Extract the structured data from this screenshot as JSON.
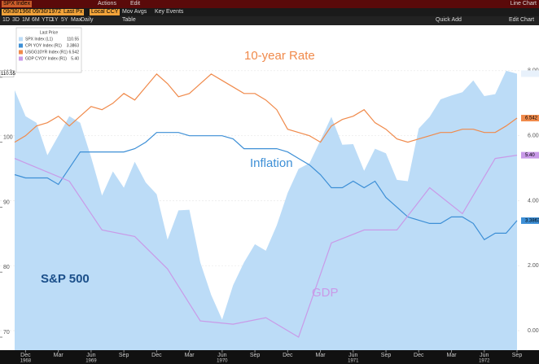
{
  "toolbar": {
    "security": "SPX Index",
    "menus": [
      "Actions",
      "Edit"
    ],
    "view": "Line Chart",
    "fields": [
      "09/30/1968",
      "09/30/1972",
      "Last Px",
      "Local CCY",
      "Mov Avgs",
      "Key Events"
    ],
    "periods": [
      "1D",
      "3D",
      "1M",
      "6M",
      "YTD",
      "1Y",
      "5Y",
      "Max",
      "Daily",
      "Table"
    ],
    "right_actions": [
      "Quick Add",
      "Edit Chart"
    ]
  },
  "chart_data": {
    "type": "line",
    "legend_title": "Last Price",
    "annotations": {
      "rate": "10-year Rate",
      "inflation": "Inflation",
      "gdp": "GDP",
      "spx": "S&P 500"
    },
    "x": [
      "1968-11",
      "1968-12",
      "1969-01",
      "1969-02",
      "1969-03",
      "1969-04",
      "1969-05",
      "1969-06",
      "1969-07",
      "1969-08",
      "1969-09",
      "1969-10",
      "1969-11",
      "1969-12",
      "1970-01",
      "1970-02",
      "1970-03",
      "1970-04",
      "1970-05",
      "1970-06",
      "1970-07",
      "1970-08",
      "1970-09",
      "1970-10",
      "1970-11",
      "1970-12",
      "1971-01",
      "1971-02",
      "1971-03",
      "1971-04",
      "1971-05",
      "1971-06",
      "1971-07",
      "1971-08",
      "1971-09",
      "1971-10",
      "1971-11",
      "1971-12",
      "1972-01",
      "1972-02",
      "1972-03",
      "1972-04",
      "1972-05",
      "1972-06",
      "1972-07",
      "1972-08",
      "1972-09"
    ],
    "xticks": [
      {
        "value": "1968-12",
        "label": "Dec"
      },
      {
        "value": "1969-03",
        "label": "Mar"
      },
      {
        "value": "1969-06",
        "label": "Jun"
      },
      {
        "value": "1969-09",
        "label": "Sep"
      },
      {
        "value": "1969-12",
        "label": "Dec"
      },
      {
        "value": "1970-03",
        "label": "Mar"
      },
      {
        "value": "1970-06",
        "label": "Jun"
      },
      {
        "value": "1970-09",
        "label": "Sep"
      },
      {
        "value": "1970-12",
        "label": "Dec"
      },
      {
        "value": "1971-03",
        "label": "Mar"
      },
      {
        "value": "1971-06",
        "label": "Jun"
      },
      {
        "value": "1971-09",
        "label": "Sep"
      },
      {
        "value": "1971-12",
        "label": "Dec"
      },
      {
        "value": "1972-03",
        "label": "Mar"
      },
      {
        "value": "1972-06",
        "label": "Jun"
      },
      {
        "value": "1972-09",
        "label": "Sep"
      }
    ],
    "xyears": [
      {
        "value": "1968-12",
        "label": "1968"
      },
      {
        "value": "1969-06",
        "label": "1969"
      },
      {
        "value": "1970-06",
        "label": "1970"
      },
      {
        "value": "1971-06",
        "label": "1971"
      },
      {
        "value": "1972-06",
        "label": "1972"
      }
    ],
    "ylim": [
      68,
      118
    ],
    "yticks": [
      70,
      80,
      90,
      100,
      110
    ],
    "y2lim": [
      -0.6,
      9.4
    ],
    "y2ticks": [
      {
        "value": 0,
        "label": "0.00"
      },
      {
        "value": 2,
        "label": "2.00"
      },
      {
        "value": 4,
        "label": "4.00"
      },
      {
        "value": 6,
        "label": "6.00"
      },
      {
        "value": 8,
        "label": "8.00"
      }
    ],
    "series": [
      {
        "name": "SPX Index (L1)",
        "color": "#bcdcf7",
        "style": "area",
        "last_label": "110.55",
        "values": [
          108,
          104,
          103,
          98,
          101,
          104,
          103,
          97.7,
          91.8,
          95.5,
          93,
          97,
          93.8,
          92,
          85,
          89.5,
          89.6,
          81.5,
          76.5,
          72.7,
          78,
          81.5,
          84.3,
          83.3,
          87.2,
          92.2,
          95.9,
          96.8,
          100.3,
          103.9,
          99.6,
          99.7,
          95.6,
          99,
          98.3,
          94.2,
          94,
          102.1,
          103.9,
          106.6,
          107.2,
          107.7,
          109.5,
          107.1,
          107.4,
          111,
          110.55
        ]
      },
      {
        "name": "CPI YOY Index (R1)",
        "color": "#3d8fd6",
        "axis": "y2",
        "last_label": "3.3863",
        "values": [
          4.8,
          4.7,
          4.7,
          4.7,
          4.5,
          5.0,
          5.5,
          5.5,
          5.5,
          5.5,
          5.5,
          5.6,
          5.8,
          6.1,
          6.1,
          6.1,
          6.0,
          6.0,
          6.0,
          6.0,
          5.9,
          5.6,
          5.6,
          5.6,
          5.6,
          5.5,
          5.3,
          5.1,
          4.8,
          4.4,
          4.4,
          4.6,
          4.4,
          4.6,
          4.1,
          3.8,
          3.5,
          3.4,
          3.3,
          3.3,
          3.5,
          3.5,
          3.3,
          2.8,
          3.0,
          3.0,
          3.3863
        ]
      },
      {
        "name": "USGG10YR Index (R1)",
        "color": "#f08a4b",
        "axis": "y2",
        "last_label": "6.542",
        "values": [
          5.8,
          6.0,
          6.3,
          6.4,
          6.6,
          6.3,
          6.6,
          6.9,
          6.8,
          7.0,
          7.3,
          7.1,
          7.5,
          7.9,
          7.6,
          7.2,
          7.3,
          7.6,
          7.9,
          7.7,
          7.5,
          7.3,
          7.3,
          7.1,
          6.8,
          6.2,
          6.1,
          6.0,
          5.8,
          6.3,
          6.5,
          6.6,
          6.8,
          6.4,
          6.2,
          5.9,
          5.8,
          5.9,
          6.0,
          6.1,
          6.1,
          6.2,
          6.2,
          6.1,
          6.1,
          6.3,
          6.542
        ]
      },
      {
        "name": "GDP CYOY Index (R1)",
        "color": "#c99ae8",
        "axis": "y2",
        "last_label": "5.40",
        "x": [
          "1968-11",
          "1969-04",
          "1969-07",
          "1969-10",
          "1970-01",
          "1970-04",
          "1970-07",
          "1970-10",
          "1971-01",
          "1971-04",
          "1971-07",
          "1971-10",
          "1972-01",
          "1972-04",
          "1972-07",
          "1972-09"
        ],
        "values": [
          5.3,
          4.6,
          3.1,
          2.9,
          1.9,
          0.3,
          0.2,
          0.4,
          -0.2,
          2.7,
          3.1,
          3.1,
          4.4,
          3.6,
          5.3,
          5.4
        ]
      }
    ]
  }
}
